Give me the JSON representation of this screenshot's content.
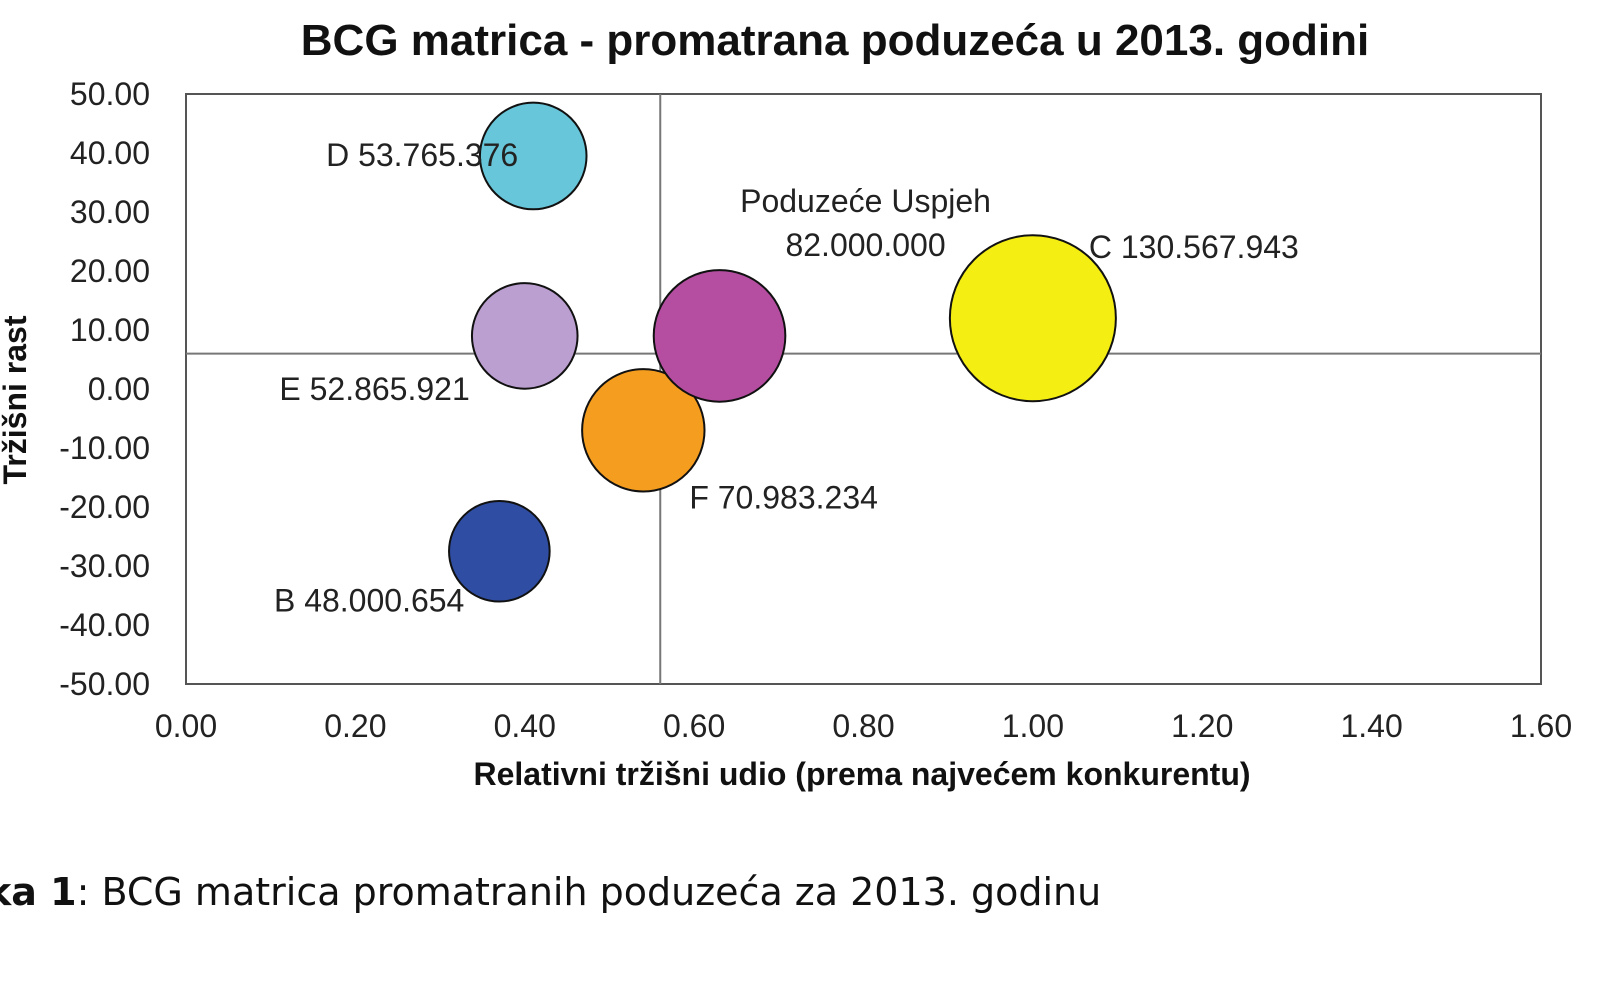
{
  "chart_data": {
    "type": "scatter",
    "title": "BCG matrica - promatrana poduzeća u 2013. godini",
    "xlabel": "Relativni tržišni udio (prema najvećem  konkurentu)",
    "ylabel": "Tržišni rast",
    "xlim": [
      0.0,
      1.6
    ],
    "ylim": [
      -50.0,
      50.0
    ],
    "x_ticks": [
      "0.00",
      "0.20",
      "0.40",
      "0.60",
      "0.80",
      "1.00",
      "1.20",
      "1.40",
      "1.60"
    ],
    "y_ticks": [
      "50.00",
      "40.00",
      "30.00",
      "20.00",
      "10.00",
      "0.00",
      "-10.00",
      "-20.00",
      "-30.00",
      "-40.00",
      "-50.00"
    ],
    "grid": false,
    "legend": "none",
    "reference_lines": {
      "x": 0.56,
      "y": 6.0
    },
    "points": [
      {
        "id": "D",
        "x": 0.41,
        "y": 39.5,
        "size": 53765376,
        "label": "D 53.765.376",
        "color": "#67c6d9"
      },
      {
        "id": "E",
        "x": 0.4,
        "y": 9.0,
        "size": 52865921,
        "label": "E 52.865.921",
        "color": "#bb9fd0"
      },
      {
        "id": "B",
        "x": 0.37,
        "y": -27.5,
        "size": 48000654,
        "label": "B 48.000.654",
        "color": "#2f4ea3"
      },
      {
        "id": "F",
        "x": 0.54,
        "y": -7.0,
        "size": 70983234,
        "label": "F 70.983.234",
        "color": "#f59d1f"
      },
      {
        "id": "Uspjeh",
        "x": 0.63,
        "y": 9.0,
        "size": 82000000,
        "label": "Poduzeće Uspjeh",
        "label2": "82.000.000",
        "color": "#b54ea1"
      },
      {
        "id": "C",
        "x": 1.0,
        "y": 12.0,
        "size": 130567943,
        "label": "C 130.567.943",
        "color": "#f5ee13"
      }
    ]
  },
  "caption": {
    "prefix": "ka 1",
    "text": ": BCG matrica promatranih poduzeća za 2013. godinu"
  }
}
